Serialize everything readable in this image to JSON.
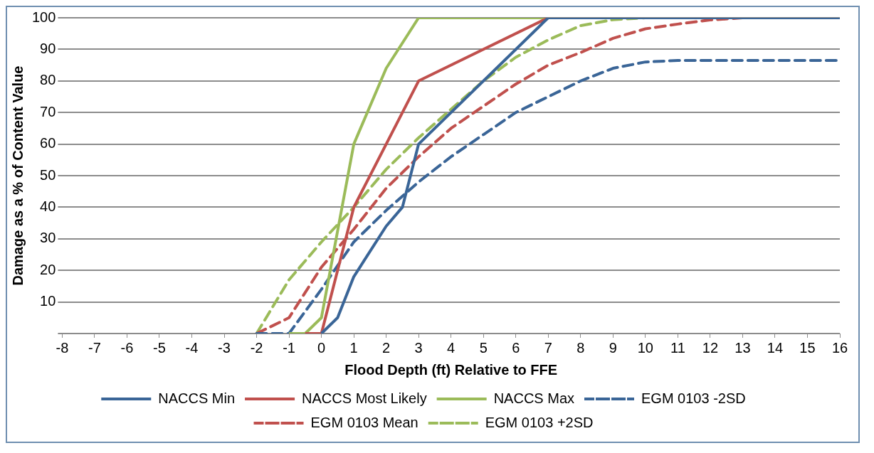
{
  "chart_data": {
    "type": "line",
    "xlabel": "Flood Depth (ft) Relative to FFE",
    "ylabel": "Damage as a % of Content Value",
    "xlim": [
      -8,
      16
    ],
    "xticks": [
      -8,
      -7,
      -6,
      -5,
      -4,
      -3,
      -2,
      -1,
      0,
      1,
      2,
      3,
      4,
      5,
      6,
      7,
      8,
      9,
      10,
      11,
      12,
      13,
      14,
      15,
      16
    ],
    "ylim": [
      0,
      100
    ],
    "yticks": [
      {
        "value": 0,
        "label": null
      },
      10,
      20,
      30,
      40,
      50,
      60,
      70,
      80,
      90,
      100
    ],
    "grid": "y",
    "legend": "bottom",
    "marker": "none",
    "series": [
      {
        "name": "NACCS Min",
        "color": "#3a6597",
        "line_style": "solid",
        "x": [
          0,
          0.5,
          1,
          2,
          2.5,
          3,
          7,
          16
        ],
        "values": [
          0,
          5,
          18,
          34,
          40,
          60,
          100,
          100
        ]
      },
      {
        "name": "NACCS Most Likely",
        "color": "#c0504d",
        "line_style": "solid",
        "x": [
          -0.5,
          0,
          1,
          3,
          7,
          16
        ],
        "values": [
          0,
          0,
          40,
          80,
          100,
          100
        ]
      },
      {
        "name": "NACCS Max",
        "color": "#9bbb59",
        "line_style": "solid",
        "x": [
          -1,
          -0.5,
          0,
          1,
          2,
          3,
          16
        ],
        "values": [
          0,
          0,
          5,
          60,
          84,
          100,
          100
        ]
      },
      {
        "name": "EGM 0103 -2SD",
        "color": "#3a6597",
        "line_style": "dashed",
        "x": [
          -2,
          -1,
          0,
          1,
          2,
          3,
          4,
          5,
          6,
          7,
          8,
          9,
          10,
          11,
          16
        ],
        "values": [
          0,
          0,
          14,
          29,
          39,
          48,
          56,
          63,
          70,
          75,
          80,
          84,
          86,
          86.5,
          86.5
        ]
      },
      {
        "name": "EGM 0103 Mean",
        "color": "#c0504d",
        "line_style": "dashed",
        "x": [
          -2,
          -1,
          0,
          1,
          2,
          3,
          4,
          5,
          6,
          7,
          8,
          9,
          10,
          11,
          12,
          13,
          16
        ],
        "values": [
          0,
          5,
          21,
          33,
          46,
          56,
          65,
          72,
          79,
          85,
          89,
          93.5,
          96.5,
          98,
          99.3,
          100,
          100
        ]
      },
      {
        "name": "EGM 0103 +2SD",
        "color": "#9bbb59",
        "line_style": "dashed",
        "x": [
          -2,
          -1,
          0,
          1,
          2,
          3,
          4,
          5,
          6,
          7,
          8,
          9,
          10,
          16
        ],
        "values": [
          0,
          17,
          29,
          40,
          52,
          62,
          71,
          80,
          87.5,
          93,
          97.5,
          99.4,
          100,
          100
        ]
      }
    ]
  }
}
